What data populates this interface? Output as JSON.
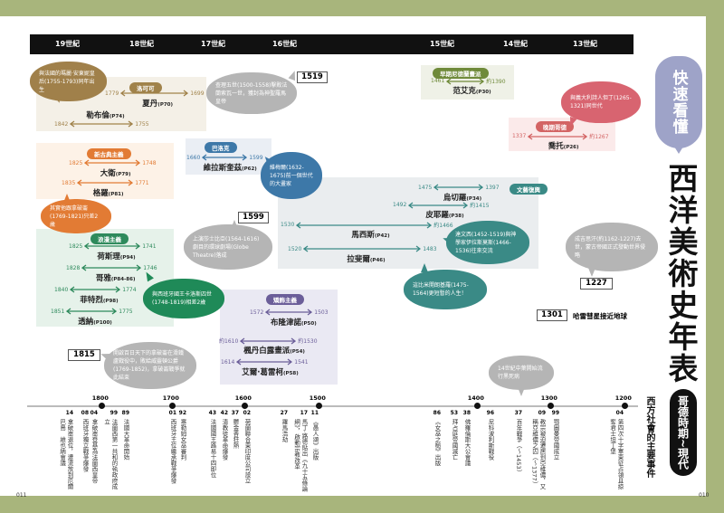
{
  "centuries": [
    "19世紀",
    "18世紀",
    "17世紀",
    "16世紀",
    "15世紀",
    "14世紀",
    "13世紀"
  ],
  "movements": [
    {
      "label": "洛可可",
      "color": "#a0824a",
      "bg": "#f4f0e7",
      "artists": [
        {
          "name": "夏丹",
          "page": "(P70)",
          "start": "1779",
          "end": "1699"
        },
        {
          "name": "勒布倫",
          "page": "(P74)",
          "start": "1842",
          "end": "1755"
        }
      ]
    },
    {
      "label": "新古典主義",
      "color": "#e27b34",
      "bg": "#fdf2e7",
      "artists": [
        {
          "name": "大衛",
          "page": "(P79)",
          "start": "1825",
          "end": "1748"
        },
        {
          "name": "格羅",
          "page": "(P81)",
          "start": "1835",
          "end": "1771"
        }
      ]
    },
    {
      "label": "浪漫主義",
      "color": "#2e8a5c",
      "bg": "#e6f2ea",
      "artists": [
        {
          "name": "荷斯理",
          "page": "(P94)",
          "start": "1825",
          "end": "1741"
        },
        {
          "name": "哥雅",
          "page": "(P84-86)",
          "start": "1828",
          "end": "1746"
        },
        {
          "name": "菲特烈",
          "page": "(P98)",
          "start": "1840",
          "end": "1774"
        },
        {
          "name": "透納",
          "page": "(P100)",
          "start": "1851",
          "end": "1775"
        }
      ]
    },
    {
      "label": "巴洛克",
      "color": "#3d78a8",
      "bg": "#eaeef4",
      "artists": [
        {
          "name": "維拉斯奎茲",
          "page": "(P62)",
          "start": "1660",
          "end": "1599"
        }
      ]
    },
    {
      "label": "文藝復興",
      "color": "#3a8a86",
      "bg": "#eaedef",
      "artists": [
        {
          "name": "烏切羅",
          "page": "(P34)",
          "start": "1475",
          "end": "1397"
        },
        {
          "name": "皮耶羅",
          "page": "(P38)",
          "start": "1492",
          "end": "約1415"
        },
        {
          "name": "馬西斯",
          "page": "(P42)",
          "start": "1530",
          "end": "約1466"
        },
        {
          "name": "拉斐爾",
          "page": "(P46)",
          "start": "1520",
          "end": "1483"
        }
      ]
    },
    {
      "label": "矯飾主義",
      "color": "#6b5e99",
      "bg": "#eae9f3",
      "artists": [
        {
          "name": "布隆津諾",
          "page": "(P50)",
          "start": "1572",
          "end": "1503"
        },
        {
          "name": "楓丹白露畫派",
          "page": "(P54)",
          "start": "約1610",
          "end": "約1530"
        },
        {
          "name": "艾爾·葛雷柯",
          "page": "(P58)",
          "start": "1614",
          "end": "1541"
        }
      ]
    },
    {
      "label": "早期尼德蘭畫派",
      "color": "#6f8a3a",
      "bg": "#eff1e7",
      "artists": [
        {
          "name": "范艾克",
          "page": "(P30)",
          "start": "1461",
          "end": "約1390"
        }
      ]
    },
    {
      "label": "晚期哥德",
      "color": "#d36464",
      "bg": "#fbeaea",
      "artists": [
        {
          "name": "喬托",
          "page": "(P26)",
          "start": "1337",
          "end": "約1267"
        }
      ]
    }
  ],
  "bubbles": [
    {
      "text": "與法國的瑪麗·安東妮皇后(1755-1793)同年出生",
      "color": "#a0804a"
    },
    {
      "text": "其實他跟拿破崙(1769-1821)只差2歲",
      "color": "#e27b34"
    },
    {
      "text": "與西班牙國王卡洛斯四世(1748-1819)相差2歲",
      "color": "#1f8a58"
    },
    {
      "text": "維梅爾(1632-1675)前一個世代的大畫家",
      "color": "#3d78a8"
    },
    {
      "text": "查理五世(1500-1558)擊敗法蘭索瓦一世，獲封為神聖羅馬皇帝",
      "color": "#b5b5b5"
    },
    {
      "text": "上演莎士比亞(1564-1616)劇目的環球劇場(Globe Theatre)落成",
      "color": "#b5b5b5"
    },
    {
      "text": "達文西(1452-1519)與神學家伊拉斯莫斯(1466-1536)往來交流",
      "color": "#3a8a86"
    },
    {
      "text": "這比米開朗基羅(1475-1564)更短暫的人生！",
      "color": "#3a8a86"
    },
    {
      "text": "與義大利詩人但丁(1265-1321)同世代",
      "color": "#d86470"
    },
    {
      "text": "成吉思汗(約1162-1227)去世，蒙古帝國正式發動世界侵略",
      "color": "#b5b5b5"
    },
    {
      "text": "開啟百日天下的拿破崙在滑鐵盧戰役中，敗給威靈頓公爵(1769-1852)，拿破崙戰爭就此結束",
      "color": "#b5b5b5"
    },
    {
      "text": "14世紀中葉開始流行黑死病",
      "color": "#b5b5b5"
    }
  ],
  "year_boxes": [
    {
      "year": "1519"
    },
    {
      "year": "1599"
    },
    {
      "year": "1227"
    },
    {
      "year": "1301",
      "note": "哈雷彗星接近地球"
    },
    {
      "year": "1815"
    }
  ],
  "title": {
    "badge": "快速看懂",
    "main": "西洋美術史年表",
    "period": "哥德時期~現代",
    "events_heading": "西方社會的主要事件"
  },
  "timeline_ticks": [
    "1800",
    "1700",
    "1600",
    "1500",
    "1400",
    "1300",
    "1200"
  ],
  "events": [
    {
      "year": "14",
      "text": "拿破崙退位，遭流放到厄爾巴島　維也納會議"
    },
    {
      "year": "08",
      "text": "西班牙獨立戰爭爆發"
    },
    {
      "year": "04",
      "text": "拿破崙登基為法蘭西皇帝"
    },
    {
      "year": "99",
      "text": "法蘭西第一共和的執政府成立"
    },
    {
      "year": "89",
      "text": "法國大革命開始"
    },
    {
      "year": "01",
      "text": "西班牙王位繼承戰爭爆發"
    },
    {
      "year": "92",
      "text": "塞勒姆女巫審判"
    },
    {
      "year": "43",
      "text": "法國國王路易十四即位"
    },
    {
      "year": "42",
      "text": "清教徒革命爆發"
    },
    {
      "year": "37",
      "text": "鬱金香狂熱"
    },
    {
      "year": "02",
      "text": "荷蘭聯合東印度公司設立"
    },
    {
      "year": "27",
      "text": "羅馬浩劫"
    },
    {
      "year": "17",
      "text": "馬丁·路德貼出《九十五條論綱》，啟動宗教改革"
    },
    {
      "year": "11",
      "text": "《愚人頌》出版"
    },
    {
      "year": "86",
      "text": "《女巫之槌》出版"
    },
    {
      "year": "53",
      "text": "拜占庭帝國滅亡"
    },
    {
      "year": "38",
      "text": "佛羅倫斯大公會議"
    },
    {
      "year": "96",
      "text": "尼科波利斯戰役"
    },
    {
      "year": "37",
      "text": "百年戰爭（～1453）"
    },
    {
      "year": "09",
      "text": "教宗被迫遷居到亞維儂，又稱亞維儂之囚（～1377）"
    },
    {
      "year": "99",
      "text": "鄂圖曼帝國成立"
    },
    {
      "year": "04",
      "text": "第四次十字軍東征占領且掠奪君士坦丁堡"
    }
  ],
  "page_numbers": {
    "left": "011",
    "right": "010"
  }
}
